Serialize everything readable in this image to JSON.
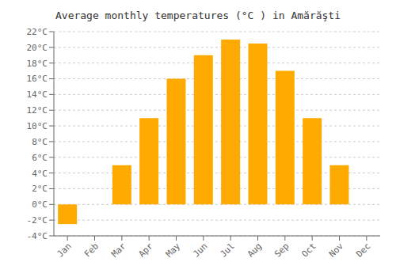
{
  "chart_data": {
    "type": "bar",
    "title": "Average monthly temperatures (°C ) in Amărăşti",
    "categories": [
      "Jan",
      "Feb",
      "Mar",
      "Apr",
      "May",
      "Jun",
      "Jul",
      "Aug",
      "Sep",
      "Oct",
      "Nov",
      "Dec"
    ],
    "values": [
      -2.5,
      0,
      5,
      11,
      16,
      19,
      21,
      20.5,
      17,
      11,
      5,
      0
    ],
    "color": "#FFAA00",
    "ylim": [
      -4,
      22
    ],
    "yticks": [
      {
        "value": -4,
        "label": "-4°C"
      },
      {
        "value": -2,
        "label": "-2°C"
      },
      {
        "value": 0,
        "label": "0°C"
      },
      {
        "value": 2,
        "label": "2°C"
      },
      {
        "value": 4,
        "label": "4°C"
      },
      {
        "value": 6,
        "label": "6°C"
      },
      {
        "value": 8,
        "label": "8°C"
      },
      {
        "value": 10,
        "label": "10°C"
      },
      {
        "value": 12,
        "label": "12°C"
      },
      {
        "value": 14,
        "label": "14°C"
      },
      {
        "value": 16,
        "label": "16°C"
      },
      {
        "value": 18,
        "label": "18°C"
      },
      {
        "value": 20,
        "label": "20°C"
      },
      {
        "value": 22,
        "label": "22°C"
      }
    ],
    "grid": true
  }
}
